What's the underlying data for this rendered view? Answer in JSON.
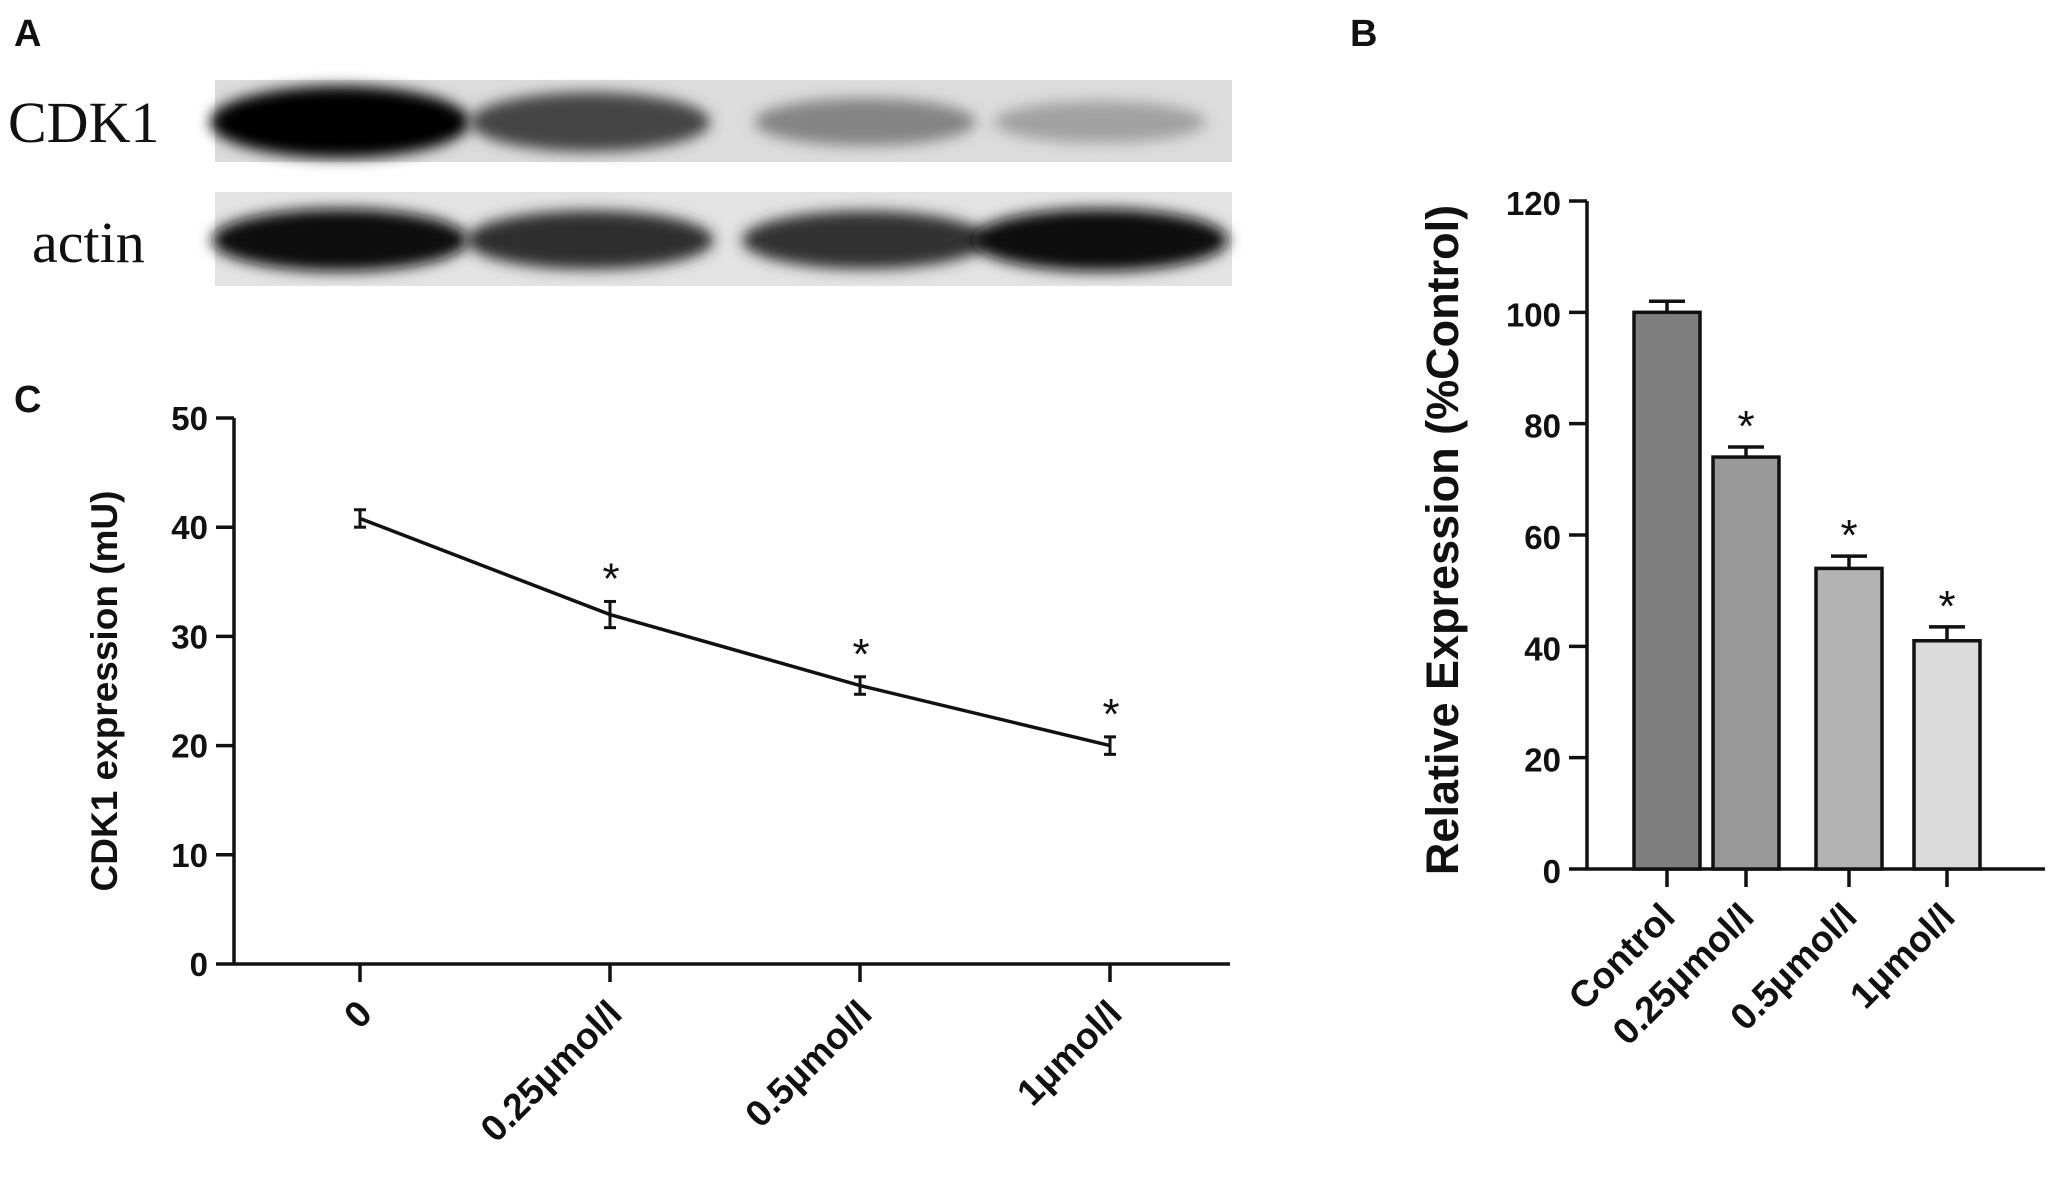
{
  "panels": {
    "a": "A",
    "b": "B",
    "c": "C"
  },
  "blot": {
    "lanes": 4,
    "rows": [
      {
        "label": "CDK1",
        "band_intensity": [
          1.0,
          0.72,
          0.45,
          0.32
        ]
      },
      {
        "label": "actin",
        "band_intensity": [
          0.95,
          0.82,
          0.8,
          0.95
        ]
      }
    ]
  },
  "chart_data": [
    {
      "id": "C",
      "type": "line",
      "title": "",
      "xlabel": "",
      "ylabel": "CDK1 expression (mU)",
      "categories": [
        "0",
        "0.25μmol/l",
        "0.5μmol/l",
        "1μmol/l"
      ],
      "values": [
        40.8,
        32.0,
        25.5,
        20.0
      ],
      "errors": [
        0.8,
        1.2,
        0.8,
        0.8
      ],
      "significance": [
        "",
        "*",
        "*",
        "*"
      ],
      "ylim": [
        0,
        50
      ],
      "yticks": [
        0,
        10,
        20,
        30,
        40,
        50
      ],
      "color": "#111111"
    },
    {
      "id": "B",
      "type": "bar",
      "title": "",
      "xlabel": "",
      "ylabel": "Relative Expression (%Control)",
      "categories": [
        "Control",
        "0.25μmol/l",
        "0.5μmol/l",
        "1μmol/l"
      ],
      "values": [
        100,
        74,
        54,
        41
      ],
      "errors": [
        2.0,
        1.8,
        2.2,
        2.5
      ],
      "significance": [
        "",
        "*",
        "*",
        "*"
      ],
      "ylim": [
        0,
        120
      ],
      "yticks": [
        0,
        20,
        40,
        60,
        80,
        100,
        120
      ],
      "bar_colors": [
        "#7f7f7f",
        "#999999",
        "#b3b3b3",
        "#dadada"
      ]
    }
  ]
}
